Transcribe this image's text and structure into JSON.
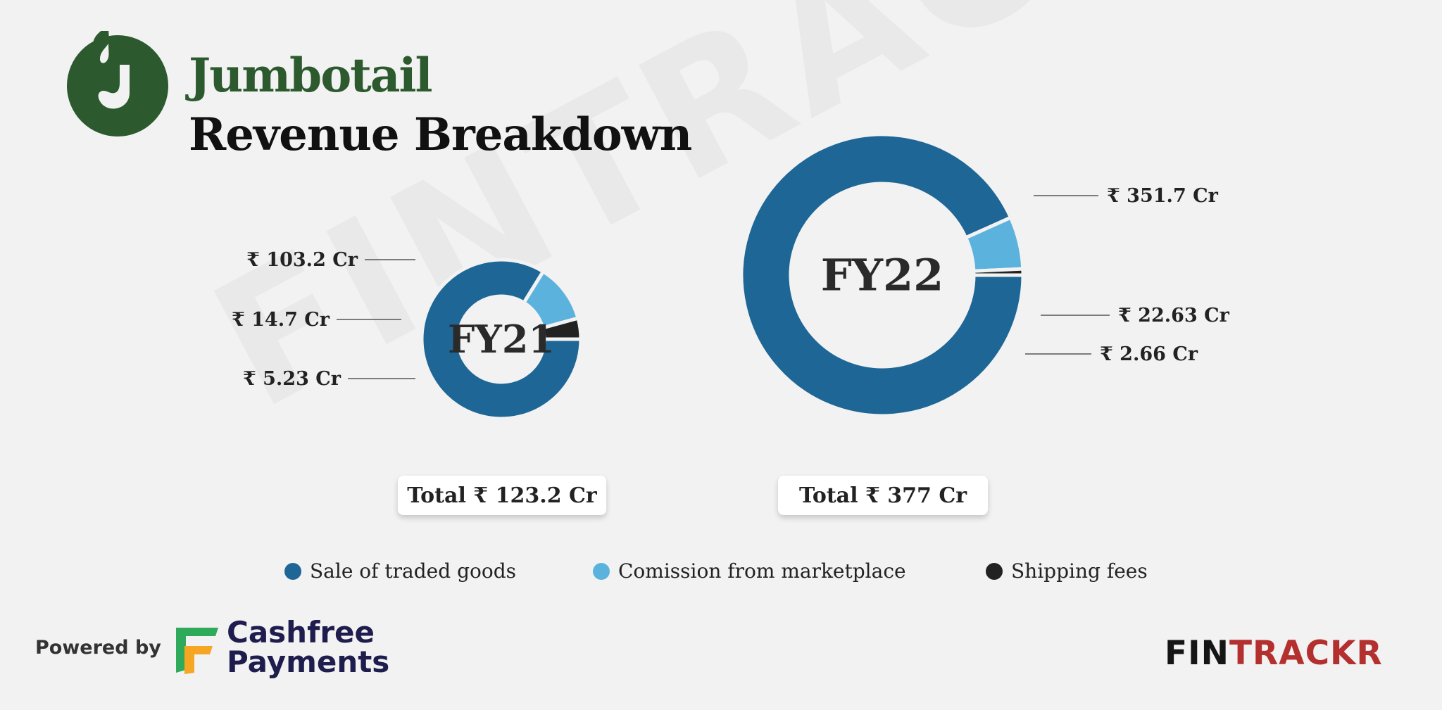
{
  "brand": {
    "name": "Jumbotail"
  },
  "title": "Revenue Breakdown",
  "watermark": "FINTRACKR",
  "colors": {
    "sale_of_traded_goods": "#1e6696",
    "commission": "#5bb3dd",
    "shipping": "#222222",
    "brand_green": "#2c5a2e",
    "fintrackr_red": "#b3302e"
  },
  "chart_data": [
    {
      "type": "donut",
      "center_label": "FY21",
      "total_label": "Total ₹ 123.2 Cr",
      "segments": [
        {
          "name": "Sale of traded goods",
          "value": 103.2,
          "label": "₹ 103.2 Cr"
        },
        {
          "name": "Comission from marketplace",
          "value": 14.7,
          "label": "₹ 14.7 Cr"
        },
        {
          "name": "Shipping fees",
          "value": 5.23,
          "label": "₹ 5.23 Cr"
        }
      ]
    },
    {
      "type": "donut",
      "center_label": "FY22",
      "total_label": "Total ₹ 377 Cr",
      "segments": [
        {
          "name": "Sale of traded goods",
          "value": 351.7,
          "label": "₹ 351.7 Cr"
        },
        {
          "name": "Comission from marketplace",
          "value": 22.63,
          "label": "₹ 22.63 Cr"
        },
        {
          "name": "Shipping fees",
          "value": 2.66,
          "label": "₹ 2.66 Cr"
        }
      ]
    }
  ],
  "legend": [
    {
      "label": "Sale of traded goods",
      "color": "#1e6696"
    },
    {
      "label": "Comission from marketplace",
      "color": "#5bb3dd"
    },
    {
      "label": "Shipping fees",
      "color": "#222222"
    }
  ],
  "footer": {
    "powered_by": "Powered by",
    "sponsor_line1": "Cashfree",
    "sponsor_line2": "Payments",
    "fintrackr_a": "FIN",
    "fintrackr_b": "TRACKR"
  }
}
